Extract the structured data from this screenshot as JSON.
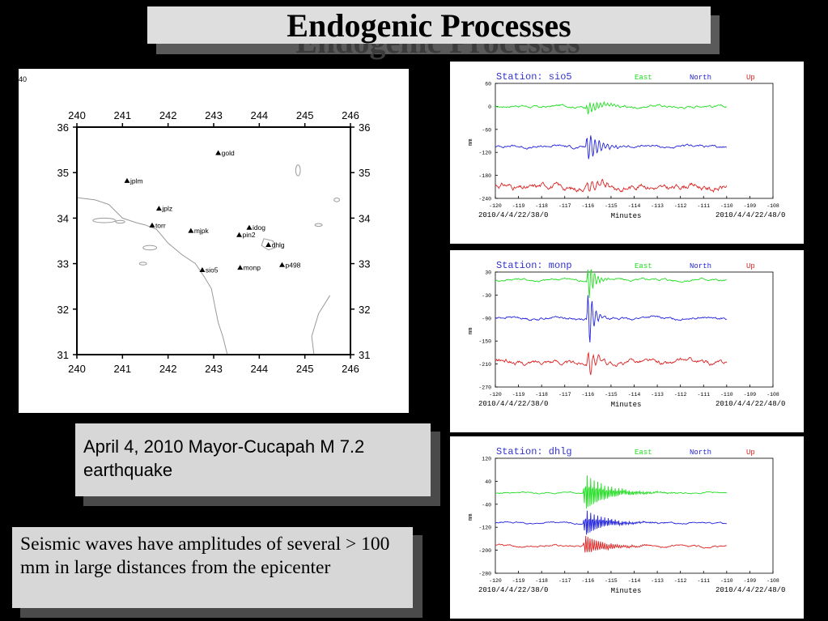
{
  "slide": {
    "title": "Endogenic Processes",
    "caption_event": "April 4, 2010 Mayor-Cucapah M 7.2 earthquake",
    "caption_note": "Seismic waves have amplitudes of several > 100 mm in large distances from the epicenter",
    "colors": {
      "background": "#000000",
      "caption_bg": "#d7d7d7",
      "east": "#22dd22",
      "north": "#2222dd",
      "up": "#dd2222"
    }
  },
  "chart_data": [
    {
      "type": "scatter",
      "corner_label": "40",
      "x_ticks": [
        "240",
        "241",
        "242",
        "243",
        "244",
        "245",
        "246"
      ],
      "y_ticks": [
        "31",
        "32",
        "33",
        "34",
        "35",
        "36"
      ],
      "xlim": [
        240,
        246
      ],
      "ylim": [
        31,
        36
      ],
      "points": [
        {
          "label": "gold",
          "lon": 243.1,
          "lat": 35.43
        },
        {
          "label": "jplm",
          "lon": 241.1,
          "lat": 34.82
        },
        {
          "label": "jplz",
          "lon": 241.8,
          "lat": 34.21
        },
        {
          "label": "torr",
          "lon": 241.65,
          "lat": 33.84
        },
        {
          "label": "mjpk",
          "lon": 242.5,
          "lat": 33.72
        },
        {
          "label": "idog",
          "lon": 243.78,
          "lat": 33.79
        },
        {
          "label": "pin2",
          "lon": 243.56,
          "lat": 33.63
        },
        {
          "label": "dhlg",
          "lon": 244.2,
          "lat": 33.41
        },
        {
          "label": "sio5",
          "lon": 242.75,
          "lat": 32.86
        },
        {
          "label": "monp",
          "lon": 243.58,
          "lat": 32.91
        },
        {
          "label": "p498",
          "lon": 244.5,
          "lat": 32.97
        }
      ]
    },
    {
      "type": "line",
      "station_label": "Station: sio5",
      "legend": [
        "East",
        "North",
        "Up"
      ],
      "y_ticks": [
        "60",
        "0",
        "-60",
        "-120",
        "-180",
        "-240"
      ],
      "ylim": [
        -240,
        60
      ],
      "ylabel": "mm",
      "x_ticks": [
        "-120",
        "-119",
        "-118",
        "-117",
        "-116",
        "-115",
        "-114",
        "-113",
        "-112",
        "-111",
        "-110",
        "-109",
        "-108"
      ],
      "xlim": [
        -120,
        -108
      ],
      "xlabel": "Minutes",
      "start_time": "2010/4/4/22/38/0",
      "end_time": "2010/4/4/22/48/0",
      "event_x": -116.1,
      "series": [
        {
          "name": "East",
          "base": 0,
          "noise": 4,
          "amp": 20,
          "decay": 0.6,
          "freq": 3
        },
        {
          "name": "North",
          "base": -105,
          "noise": 4,
          "amp": 45,
          "decay": 0.5,
          "freq": 2.5
        },
        {
          "name": "Up",
          "base": -210,
          "noise": 9,
          "amp": 15,
          "decay": 0.8,
          "freq": 2
        }
      ]
    },
    {
      "type": "line",
      "station_label": "Station: monp",
      "legend": [
        "East",
        "North",
        "Up"
      ],
      "y_ticks": [
        "30",
        "-30",
        "-90",
        "-150",
        "-210",
        "-270"
      ],
      "ylim": [
        -270,
        30
      ],
      "ylabel": "mm",
      "x_ticks": [
        "-120",
        "-119",
        "-118",
        "-117",
        "-116",
        "-115",
        "-114",
        "-113",
        "-112",
        "-111",
        "-110",
        "-109",
        "-108"
      ],
      "xlim": [
        -120,
        -108
      ],
      "xlabel": "Minutes",
      "start_time": "2010/4/4/22/38/0",
      "end_time": "2010/4/4/22/48/0",
      "event_x": -116.05,
      "series": [
        {
          "name": "East",
          "base": 10,
          "noise": 4,
          "amp": 70,
          "decay": 0.25,
          "freq": 3
        },
        {
          "name": "North",
          "base": -90,
          "noise": 4,
          "amp": 130,
          "decay": 0.2,
          "freq": 2.5
        },
        {
          "name": "Up",
          "base": -205,
          "noise": 7,
          "amp": 50,
          "decay": 0.3,
          "freq": 2
        }
      ]
    },
    {
      "type": "line",
      "station_label": "Station: dhlg",
      "legend": [
        "East",
        "North",
        "Up"
      ],
      "y_ticks": [
        "120",
        "40",
        "-40",
        "-120",
        "-200",
        "-280"
      ],
      "ylim": [
        -280,
        120
      ],
      "ylabel": "mm",
      "x_ticks": [
        "-120",
        "-119",
        "-118",
        "-117",
        "-116",
        "-115",
        "-114",
        "-113",
        "-112",
        "-111",
        "-110",
        "-109",
        "-108"
      ],
      "xlim": [
        -120,
        -108
      ],
      "xlabel": "Minutes",
      "start_time": "2010/4/4/22/38/0",
      "end_time": "2010/4/4/22/48/0",
      "event_x": -116.2,
      "series": [
        {
          "name": "East",
          "base": 0,
          "noise": 3,
          "amp": 75,
          "decay": 0.9,
          "freq": 6
        },
        {
          "name": "North",
          "base": -105,
          "noise": 3,
          "amp": 55,
          "decay": 0.8,
          "freq": 6
        },
        {
          "name": "Up",
          "base": -185,
          "noise": 4,
          "amp": 40,
          "decay": 0.8,
          "freq": 5
        }
      ]
    }
  ]
}
